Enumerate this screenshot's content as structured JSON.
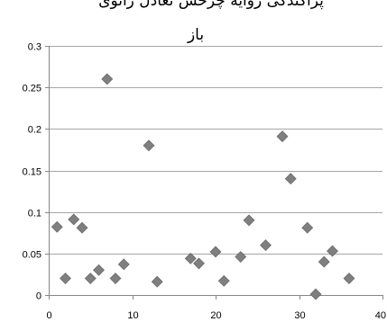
{
  "chart_data": {
    "type": "scatter",
    "title_line1": "پراکندگی زوایه چرخش تعادل زانوی",
    "title_line2": "باز",
    "xlabel": "",
    "ylabel": "",
    "xlim": [
      0,
      40
    ],
    "ylim": [
      0,
      0.3
    ],
    "x_ticks": [
      0,
      10,
      20,
      30,
      40
    ],
    "x_tick_labels": [
      "0",
      "10",
      "20",
      "30",
      "40"
    ],
    "y_ticks": [
      0,
      0.05,
      0.1,
      0.15,
      0.2,
      0.25,
      0.3
    ],
    "y_tick_labels": [
      "0",
      "0.05",
      "0.1",
      "0.15",
      "0.2",
      "0.25",
      "0.3"
    ],
    "grid": "horizontal",
    "marker": "diamond",
    "marker_color": "#7f7f7f",
    "gridline_color": "#a6a6a6",
    "points": [
      {
        "x": 1,
        "y": 0.082
      },
      {
        "x": 2,
        "y": 0.02
      },
      {
        "x": 3,
        "y": 0.091
      },
      {
        "x": 4,
        "y": 0.081
      },
      {
        "x": 5,
        "y": 0.02
      },
      {
        "x": 6,
        "y": 0.03
      },
      {
        "x": 7,
        "y": 0.26
      },
      {
        "x": 8,
        "y": 0.02
      },
      {
        "x": 9,
        "y": 0.037
      },
      {
        "x": 12,
        "y": 0.18
      },
      {
        "x": 13,
        "y": 0.016
      },
      {
        "x": 17,
        "y": 0.044
      },
      {
        "x": 18,
        "y": 0.038
      },
      {
        "x": 20,
        "y": 0.052
      },
      {
        "x": 21,
        "y": 0.017
      },
      {
        "x": 23,
        "y": 0.046
      },
      {
        "x": 24,
        "y": 0.09
      },
      {
        "x": 26,
        "y": 0.06
      },
      {
        "x": 28,
        "y": 0.191
      },
      {
        "x": 29,
        "y": 0.14
      },
      {
        "x": 31,
        "y": 0.081
      },
      {
        "x": 32,
        "y": 0.001
      },
      {
        "x": 33,
        "y": 0.04
      },
      {
        "x": 34,
        "y": 0.053
      },
      {
        "x": 36,
        "y": 0.02
      }
    ]
  }
}
